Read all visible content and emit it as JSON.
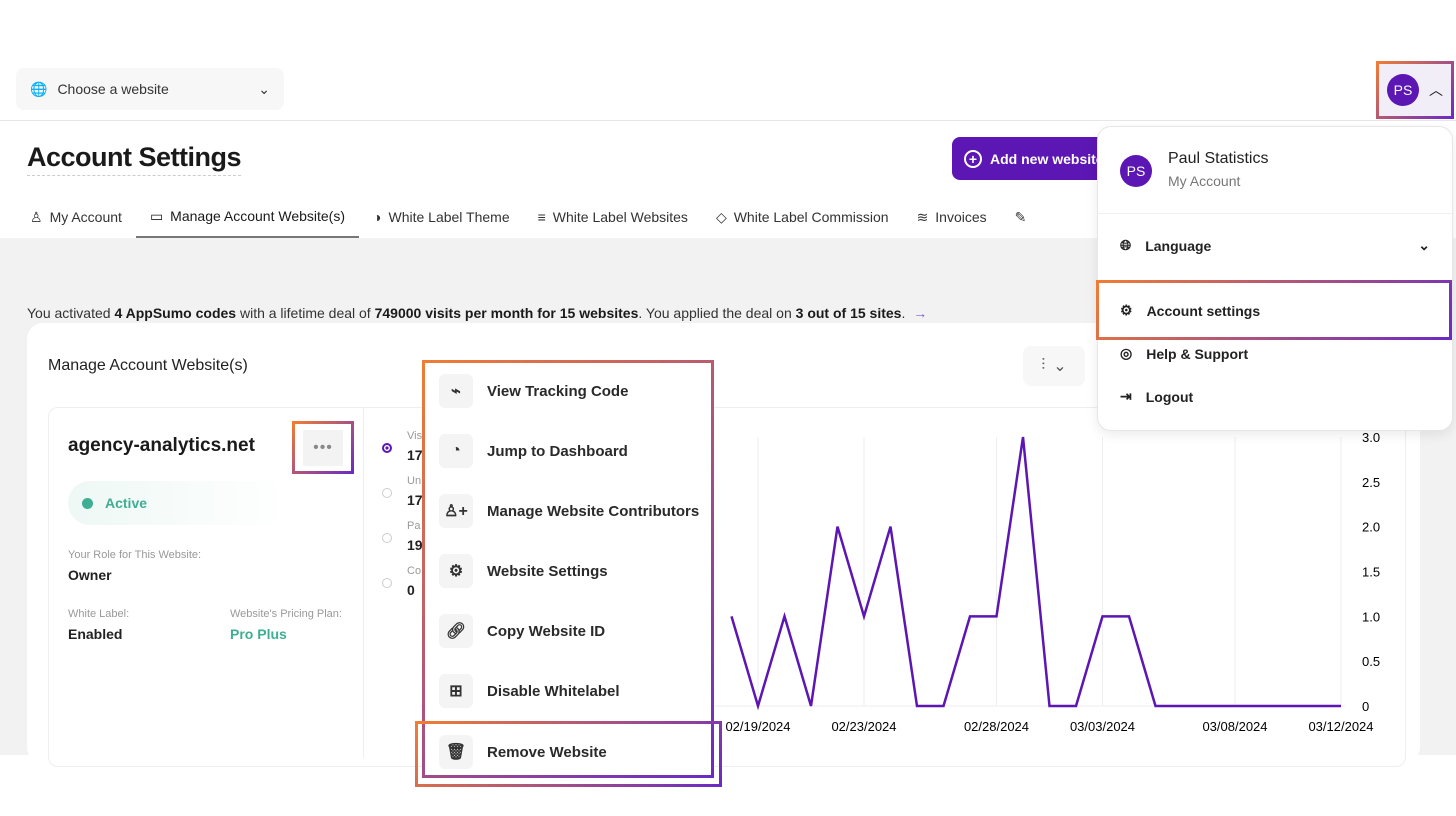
{
  "header": {
    "site_select": "Choose a website",
    "avatar_initials": "PS"
  },
  "page": {
    "title": "Account Settings",
    "add_button": "Add new website"
  },
  "tabs": [
    {
      "label": "My Account",
      "icon": "user-icon"
    },
    {
      "label": "Manage Account Website(s)",
      "icon": "stack-icon",
      "active": true
    },
    {
      "label": "White Label Theme",
      "icon": "contrast-icon"
    },
    {
      "label": "White Label Websites",
      "icon": "list-icon"
    },
    {
      "label": "White Label Commission",
      "icon": "tag-icon"
    },
    {
      "label": "Invoices",
      "icon": "layers-icon"
    },
    {
      "label": "",
      "icon": "pencil-icon"
    }
  ],
  "notice": {
    "p1": "You activated ",
    "b1": "4 AppSumo codes",
    "p2": " with a lifetime deal of ",
    "b2": "749000 visits per month for 15 websites",
    "p3": ". You applied the deal on ",
    "b3": "3 out of 15 sites",
    "p4": ".",
    "arrow": "→"
  },
  "card": {
    "title": "Manage Account Website(s)"
  },
  "website": {
    "name": "agency-analytics.net",
    "status": "Active",
    "role_label": "Your Role for This Website:",
    "role": "Owner",
    "wl_label": "White Label:",
    "wl": "Enabled",
    "plan_label": "Website's Pricing Plan:",
    "plan": "Pro Plus"
  },
  "metrics": [
    {
      "label": "Vis",
      "value": "17",
      "selected": true
    },
    {
      "label": "Un",
      "value": "17"
    },
    {
      "label": "Pa",
      "value": "19"
    },
    {
      "label": "Co",
      "value": "0"
    }
  ],
  "context_menu": [
    {
      "label": "View Tracking Code",
      "icon": "activity-icon"
    },
    {
      "label": "Jump to Dashboard",
      "icon": "pie-chart-icon"
    },
    {
      "label": "Manage Website Contributors",
      "icon": "user-plus-icon"
    },
    {
      "label": "Website Settings",
      "icon": "gear-icon"
    },
    {
      "label": "Copy Website ID",
      "icon": "link-icon"
    },
    {
      "label": "Disable Whitelabel",
      "icon": "grid-icon"
    },
    {
      "label": "Remove Website",
      "icon": "trash-icon"
    }
  ],
  "profile_menu": {
    "name": "Paul Statistics",
    "sub": "My Account",
    "initials": "PS",
    "language": "Language",
    "account_settings": "Account settings",
    "help": "Help & Support",
    "logout": "Logout"
  },
  "colors": {
    "accent": "#5b16b4",
    "active": "#3fae93",
    "highlight_start": "#f07d34",
    "highlight_end": "#6a2bc4"
  },
  "chart_data": {
    "type": "line",
    "x": [
      "02/18/2024",
      "02/19/2024",
      "02/20/2024",
      "02/21/2024",
      "02/22/2024",
      "02/23/2024",
      "02/24/2024",
      "02/25/2024",
      "02/26/2024",
      "02/27/2024",
      "02/28/2024",
      "02/29/2024",
      "03/01/2024",
      "03/02/2024",
      "03/03/2024",
      "03/04/2024",
      "03/05/2024",
      "03/06/2024",
      "03/07/2024",
      "03/08/2024",
      "03/09/2024",
      "03/10/2024",
      "03/11/2024",
      "03/12/2024"
    ],
    "values": [
      1,
      0,
      1,
      0,
      2,
      1,
      2,
      0,
      0,
      1,
      1,
      3,
      0,
      0,
      1,
      1,
      0,
      0,
      0,
      0,
      0,
      0,
      0,
      0
    ],
    "x_ticks": [
      "02/19/2024",
      "02/23/2024",
      "02/28/2024",
      "03/03/2024",
      "03/08/2024",
      "03/12/2024"
    ],
    "y_ticks": [
      "0",
      "0.5",
      "1.0",
      "1.5",
      "2.0",
      "2.5",
      "3.0"
    ],
    "ylim": [
      0,
      3
    ],
    "grid": "vertical",
    "y_axis": "right",
    "color": "#5b16b4"
  }
}
